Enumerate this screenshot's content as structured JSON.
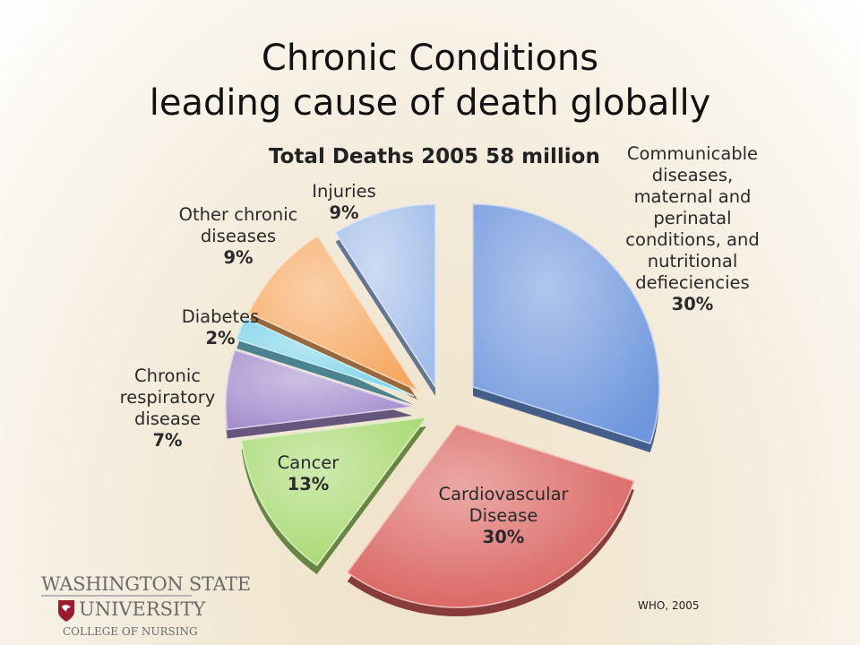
{
  "slide": {
    "title_line1": "Chronic Conditions",
    "title_line2": "leading cause of death globally",
    "source": "WHO, 2005"
  },
  "logo": {
    "line1": "WASHINGTON STATE",
    "line2": "UNIVERSITY",
    "line3": "COLLEGE OF NURSING"
  },
  "chart_data": {
    "type": "pie",
    "title": "Total Deaths 2005 58 million",
    "slices": [
      {
        "label": "Communicable diseases, maternal and perinatal conditions, and nutritional defieciencies",
        "label_lines": [
          "Communicable",
          "diseases,",
          "maternal and",
          "perinatal",
          "conditions, and",
          "nutritional",
          "defieciencies"
        ],
        "value": 30,
        "value_label": "30%",
        "color": "#6f97dd"
      },
      {
        "label": "Cardiovascular Disease",
        "label_lines": [
          "Cardiovascular",
          "Disease"
        ],
        "value": 30,
        "value_label": "30%",
        "color": "#d9605c"
      },
      {
        "label": "Cancer",
        "label_lines": [
          "Cancer"
        ],
        "value": 13,
        "value_label": "13%",
        "color": "#a6d86d"
      },
      {
        "label": "Chronic respiratory disease",
        "label_lines": [
          "Chronic",
          "respiratory",
          "disease"
        ],
        "value": 7,
        "value_label": "7%",
        "color": "#a48bcc"
      },
      {
        "label": "Diabetes",
        "label_lines": [
          "Diabetes"
        ],
        "value": 2,
        "value_label": "2%",
        "color": "#7ad3e8"
      },
      {
        "label": "Other chronic diseases",
        "label_lines": [
          "Other chronic",
          "diseases"
        ],
        "value": 9,
        "value_label": "9%",
        "color": "#f5a860"
      },
      {
        "label": "Injuries",
        "label_lines": [
          "Injuries"
        ],
        "value": 9,
        "value_label": "9%",
        "color": "#a3bde9"
      }
    ],
    "legend": "none",
    "exploded": true
  }
}
